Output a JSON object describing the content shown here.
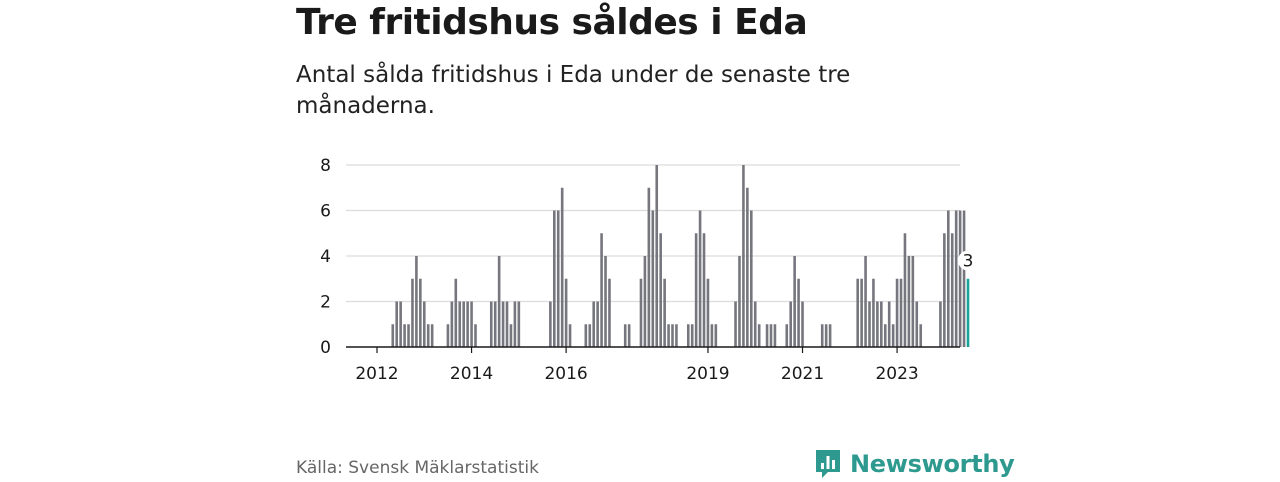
{
  "title": "Tre fritidshus såldes i Eda",
  "subtitle": "Antal sålda fritidshus i Eda under de senaste tre månaderna.",
  "source": "Källa: Svensk Mäklarstatistik",
  "brand": {
    "name": "Newsworthy",
    "logo_icon": "newsworthy-logo-icon",
    "color": "#2e9a8f"
  },
  "colors": {
    "bar": "#76767e",
    "highlight": "#1aa39a",
    "grid": "#dcdcdc",
    "axis": "#1a1a1a"
  },
  "chart_data": {
    "type": "bar",
    "ylim": [
      0,
      8
    ],
    "yticks": [
      0,
      2,
      4,
      6,
      8
    ],
    "grid": true,
    "x_tick_labels": [
      "2012",
      "2014",
      "2016",
      "2019",
      "2021",
      "2023"
    ],
    "highlight_label": "3",
    "values": [
      0,
      0,
      0,
      0,
      1,
      2,
      2,
      1,
      1,
      3,
      4,
      3,
      2,
      1,
      1,
      0,
      0,
      0,
      1,
      2,
      3,
      2,
      2,
      2,
      2,
      1,
      0,
      0,
      0,
      2,
      2,
      4,
      2,
      2,
      1,
      2,
      2,
      0,
      0,
      0,
      0,
      0,
      0,
      0,
      2,
      6,
      6,
      7,
      3,
      1,
      0,
      0,
      0,
      1,
      1,
      2,
      2,
      5,
      4,
      3,
      0,
      0,
      0,
      1,
      1,
      0,
      0,
      3,
      4,
      7,
      6,
      8,
      5,
      3,
      1,
      1,
      1,
      0,
      0,
      1,
      1,
      5,
      6,
      5,
      3,
      1,
      1,
      0,
      0,
      0,
      0,
      2,
      4,
      8,
      7,
      6,
      2,
      1,
      0,
      1,
      1,
      1,
      0,
      0,
      1,
      2,
      4,
      3,
      2,
      0,
      0,
      0,
      0,
      1,
      1,
      1,
      0,
      0,
      0,
      0,
      0,
      0,
      3,
      3,
      4,
      2,
      3,
      2,
      2,
      1,
      2,
      1,
      3,
      3,
      5,
      4,
      4,
      2,
      1,
      0,
      0,
      0,
      0,
      2,
      5,
      6,
      5,
      6,
      6,
      6,
      3
    ]
  }
}
